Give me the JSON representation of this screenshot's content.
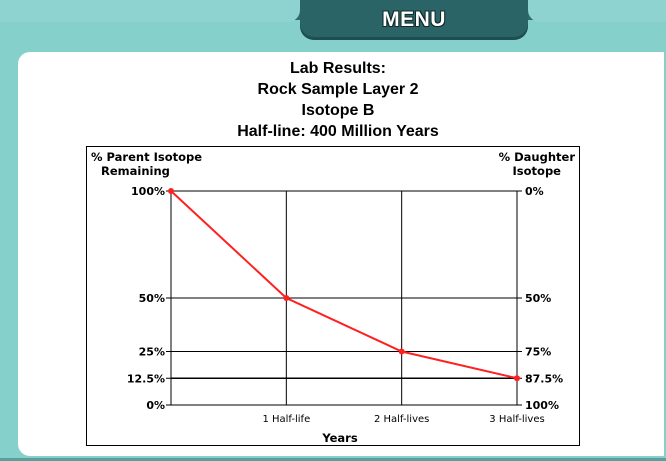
{
  "menu": {
    "label": "MENU"
  },
  "report": {
    "title_lines": [
      "Lab Results:",
      "Rock Sample Layer 2",
      "Isotope B",
      "Half-line: 400 Million Years"
    ]
  },
  "chart_data": {
    "type": "line",
    "title": "",
    "xlabel": "Years",
    "ylabel_left": "% Parent Isotope Remaining",
    "ylabel_right": "% Daughter Isotope",
    "x": [
      0,
      1,
      2,
      3
    ],
    "x_tick_labels": [
      "",
      "1 Half-life",
      "2 Half-lives",
      "3 Half-lives"
    ],
    "series": [
      {
        "values": [
          100,
          50,
          25,
          12.5
        ],
        "color": "#ff2020"
      }
    ],
    "left_ticks": [
      {
        "value": 100,
        "label": "100%"
      },
      {
        "value": 50,
        "label": "50%"
      },
      {
        "value": 25,
        "label": "25%"
      },
      {
        "value": 12.5,
        "label": "12.5%"
      },
      {
        "value": 0,
        "label": "0%"
      }
    ],
    "right_ticks": [
      {
        "value": 100,
        "label": "0%"
      },
      {
        "value": 50,
        "label": "50%"
      },
      {
        "value": 25,
        "label": "75%"
      },
      {
        "value": 12.5,
        "label": "87.5%"
      },
      {
        "value": 0,
        "label": "100%"
      }
    ],
    "xlim": [
      0,
      3
    ],
    "ylim": [
      0,
      100
    ],
    "grid": true
  }
}
